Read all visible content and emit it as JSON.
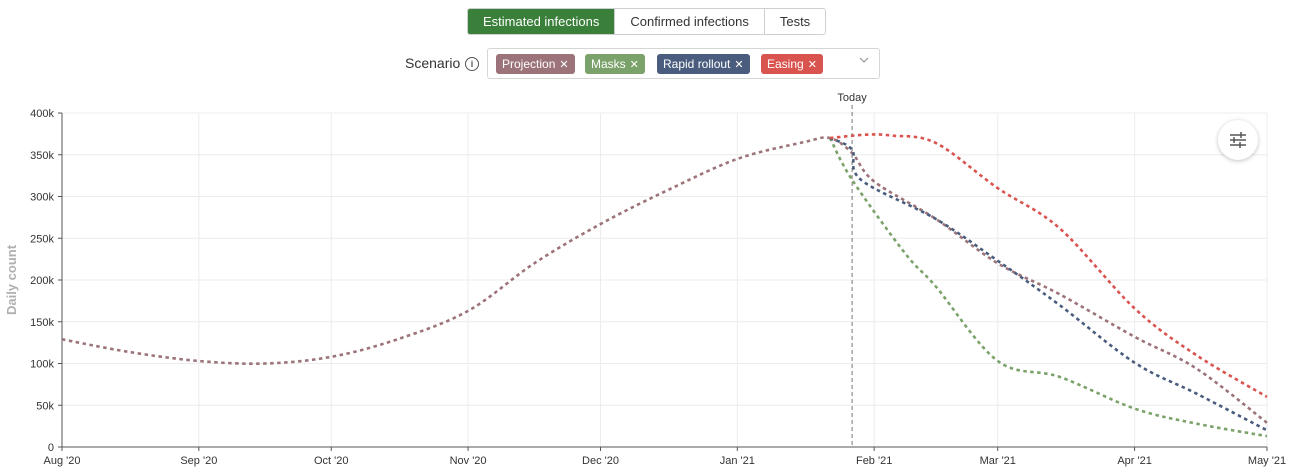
{
  "tabs": [
    {
      "label": "Estimated infections",
      "active": true
    },
    {
      "label": "Confirmed infections",
      "active": false
    },
    {
      "label": "Tests",
      "active": false
    }
  ],
  "scenario": {
    "label": "Scenario",
    "info_icon": "info-icon",
    "chips": [
      {
        "label": "Projection",
        "color": "#9b7378"
      },
      {
        "label": "Masks",
        "color": "#7ba26a"
      },
      {
        "label": "Rapid rollout",
        "color": "#4a5d7e"
      },
      {
        "label": "Easing",
        "color": "#d9534f"
      }
    ]
  },
  "chart_data": {
    "type": "line",
    "ylabel": "Daily count",
    "x_ticks": [
      "Aug '20",
      "Sep '20",
      "Oct '20",
      "Nov '20",
      "Dec '20",
      "Jan '21",
      "Feb '21",
      "Mar '21",
      "Apr '21",
      "May '21"
    ],
    "x_range": [
      "2020-08-01",
      "2021-05-01"
    ],
    "y_ticks": [
      "0",
      "50k",
      "100k",
      "150k",
      "200k",
      "250k",
      "300k",
      "350k",
      "400k"
    ],
    "ylim": [
      0,
      400000
    ],
    "marker": {
      "label": "Today",
      "date": "2021-01-27"
    },
    "grid": true,
    "series": [
      {
        "name": "Projection",
        "color": "#9b7378",
        "points": [
          [
            "2020-08-01",
            129000
          ],
          [
            "2020-08-16",
            114000
          ],
          [
            "2020-09-01",
            103000
          ],
          [
            "2020-09-16",
            100000
          ],
          [
            "2020-10-01",
            108000
          ],
          [
            "2020-10-16",
            129000
          ],
          [
            "2020-11-01",
            163000
          ],
          [
            "2020-11-16",
            220000
          ],
          [
            "2020-12-01",
            267000
          ],
          [
            "2020-12-16",
            307000
          ],
          [
            "2021-01-01",
            345000
          ],
          [
            "2021-01-16",
            365000
          ],
          [
            "2021-01-22",
            370000
          ],
          [
            "2021-01-27",
            352000
          ],
          [
            "2021-02-01",
            318000
          ],
          [
            "2021-02-15",
            273000
          ],
          [
            "2021-03-01",
            220000
          ],
          [
            "2021-03-15",
            183000
          ],
          [
            "2021-04-01",
            132000
          ],
          [
            "2021-04-15",
            94000
          ],
          [
            "2021-05-01",
            29000
          ]
        ]
      },
      {
        "name": "Masks",
        "color": "#7ba26a",
        "points": [
          [
            "2021-01-22",
            370000
          ],
          [
            "2021-01-27",
            320000
          ],
          [
            "2021-02-08",
            232000
          ],
          [
            "2021-02-15",
            192000
          ],
          [
            "2021-03-01",
            103000
          ],
          [
            "2021-03-15",
            84000
          ],
          [
            "2021-04-01",
            46000
          ],
          [
            "2021-04-15",
            28000
          ],
          [
            "2021-05-01",
            13000
          ]
        ]
      },
      {
        "name": "Rapid rollout",
        "color": "#4a5d7e",
        "points": [
          [
            "2021-01-22",
            370000
          ],
          [
            "2021-01-27",
            356000
          ],
          [
            "2021-01-29",
            320000
          ],
          [
            "2021-02-15",
            273000
          ],
          [
            "2021-03-01",
            223000
          ],
          [
            "2021-03-15",
            170000
          ],
          [
            "2021-04-01",
            101000
          ],
          [
            "2021-04-15",
            64000
          ],
          [
            "2021-05-01",
            20000
          ]
        ]
      },
      {
        "name": "Easing",
        "color": "#d9534f",
        "points": [
          [
            "2021-01-22",
            370000
          ],
          [
            "2021-01-30",
            374000
          ],
          [
            "2021-02-05",
            373000
          ],
          [
            "2021-02-15",
            364000
          ],
          [
            "2021-03-01",
            310000
          ],
          [
            "2021-03-15",
            262000
          ],
          [
            "2021-04-01",
            166000
          ],
          [
            "2021-04-15",
            110000
          ],
          [
            "2021-05-01",
            60000
          ]
        ]
      }
    ]
  }
}
